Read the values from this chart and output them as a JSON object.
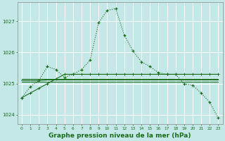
{
  "bg_color": "#c4e8e8",
  "grid_color": "#b0d8d8",
  "line_color": "#1a6b1a",
  "title": "Graphe pression niveau de la mer (hPa)",
  "title_fontsize": 6.5,
  "xlim": [
    -0.5,
    23.5
  ],
  "ylim": [
    1023.7,
    1027.6
  ],
  "yticks": [
    1024,
    1025,
    1026,
    1027
  ],
  "xticks": [
    0,
    1,
    2,
    3,
    4,
    5,
    6,
    7,
    8,
    9,
    10,
    11,
    12,
    13,
    14,
    15,
    16,
    17,
    18,
    19,
    20,
    21,
    22,
    23
  ],
  "s1_x": [
    0,
    1,
    2,
    3,
    4,
    5,
    6,
    7,
    8,
    9,
    10,
    11,
    12,
    13,
    14,
    15,
    16,
    17,
    18,
    19,
    20,
    21,
    22,
    23
  ],
  "s1_y": [
    1024.55,
    1024.9,
    1025.1,
    1025.55,
    1025.45,
    1025.2,
    1025.3,
    1025.45,
    1025.75,
    1026.95,
    1027.35,
    1027.4,
    1026.55,
    1026.05,
    1025.7,
    1025.55,
    1025.35,
    1025.3,
    1025.3,
    1025.0,
    1024.95,
    1024.7,
    1024.4,
    1023.9
  ],
  "s2_x": [
    0,
    1,
    2,
    3,
    4,
    5,
    6,
    7,
    8,
    9,
    10,
    11,
    12,
    13,
    14,
    15,
    16,
    17,
    18,
    19,
    20,
    21,
    22,
    23
  ],
  "s2_y": [
    1025.1,
    1025.1,
    1025.1,
    1025.12,
    1025.12,
    1025.12,
    1025.12,
    1025.12,
    1025.12,
    1025.12,
    1025.12,
    1025.12,
    1025.12,
    1025.12,
    1025.12,
    1025.12,
    1025.12,
    1025.12,
    1025.12,
    1025.12,
    1025.12,
    1025.12,
    1025.12,
    1025.12
  ],
  "s3_x": [
    0,
    1,
    2,
    3,
    4,
    5,
    6,
    7,
    8,
    9,
    10,
    11,
    12,
    13,
    14,
    15,
    16,
    17,
    18,
    19,
    20,
    21,
    22,
    23
  ],
  "s3_y": [
    1025.05,
    1025.05,
    1025.05,
    1025.05,
    1025.05,
    1025.05,
    1025.05,
    1025.05,
    1025.05,
    1025.05,
    1025.05,
    1025.05,
    1025.05,
    1025.05,
    1025.05,
    1025.05,
    1025.05,
    1025.05,
    1025.05,
    1025.05,
    1025.05,
    1025.05,
    1025.05,
    1025.05
  ],
  "s4_x": [
    0,
    1,
    2,
    3,
    4,
    5,
    6,
    7,
    8,
    9,
    10,
    11,
    12,
    13,
    14,
    15,
    16,
    17,
    18,
    19,
    20,
    21,
    22,
    23
  ],
  "s4_y": [
    1025.15,
    1025.15,
    1025.15,
    1025.15,
    1025.15,
    1025.15,
    1025.15,
    1025.15,
    1025.15,
    1025.15,
    1025.15,
    1025.15,
    1025.15,
    1025.15,
    1025.15,
    1025.15,
    1025.15,
    1025.15,
    1025.15,
    1025.15,
    1025.15,
    1025.15,
    1025.15,
    1025.15
  ],
  "s5_x": [
    0,
    1,
    2,
    3,
    4,
    5,
    6,
    7,
    8,
    9,
    10,
    11,
    12,
    13,
    14,
    15,
    16,
    17,
    18,
    19,
    20,
    21,
    22,
    23
  ],
  "s5_y": [
    1024.55,
    1024.7,
    1024.85,
    1025.0,
    1025.15,
    1025.3,
    1025.3,
    1025.3,
    1025.3,
    1025.3,
    1025.3,
    1025.3,
    1025.3,
    1025.3,
    1025.3,
    1025.3,
    1025.3,
    1025.3,
    1025.3,
    1025.3,
    1025.3,
    1025.3,
    1025.3,
    1025.3
  ]
}
